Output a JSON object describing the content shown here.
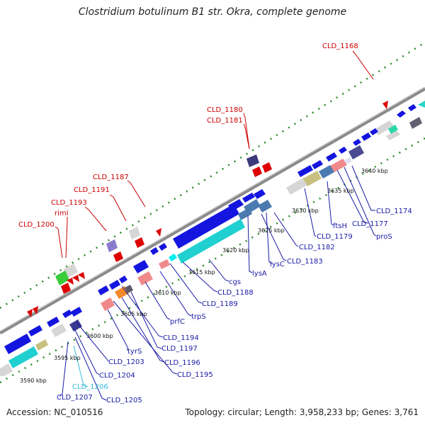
{
  "title": "Clostridium botulinum B1 str. Okra, complete genome",
  "footer": {
    "accession": "Accession: NC_010516",
    "info": "Topology: circular; Length: 3,958,233 bp; Genes: 3,761"
  },
  "colors": {
    "forward": "#1515e0",
    "backbone": "#8a8a8a",
    "dots": "#2a8a2a",
    "rna": "#00e0e0",
    "label_red": "#cc0000",
    "label_blue": "#1a1aa6",
    "label_cyan": "#33bbdd"
  },
  "kbp_labels": [
    "3590 kbp",
    "3595 kbp",
    "3600 kbp",
    "3605 kbp",
    "3610 kbp",
    "3615 kbp",
    "3620 kbp",
    "3625 kbp",
    "3630 kbp",
    "3635 kbp",
    "3640 kbp"
  ],
  "top_labels": [
    "CLD_1168",
    "CLD_1180",
    "CLD_1181",
    "CLD_1187",
    "CLD_1191",
    "CLD_1193",
    "rimI",
    "CLD_1200"
  ],
  "bottom_labels": [
    "CLD_1174",
    "proS",
    "CLD_1177",
    "ftsH",
    "CLD_1179",
    "CLD_1182",
    "CLD_1183",
    "lysC",
    "lysA",
    "cgs",
    "CLD_1188",
    "CLD_1189",
    "trpS",
    "prfC",
    "CLD_1194",
    "CLD_1197",
    "CLD_1196",
    "CLD_1195",
    "tyrS",
    "CLD_1203",
    "CLD_1204",
    "CLD_1205",
    "CLD_1206",
    "CLD_1207"
  ]
}
